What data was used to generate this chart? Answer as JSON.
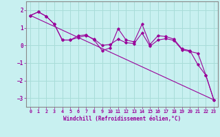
{
  "xlabel": "Windchill (Refroidissement éolien,°C)",
  "bg_color": "#c8f0f0",
  "grid_color": "#a8dcd8",
  "line_color": "#990099",
  "spine_color": "#888888",
  "xlim": [
    -0.5,
    23.5
  ],
  "ylim": [
    -3.5,
    2.5
  ],
  "xticks": [
    0,
    1,
    2,
    3,
    4,
    5,
    6,
    7,
    8,
    9,
    10,
    11,
    12,
    13,
    14,
    15,
    16,
    17,
    18,
    19,
    20,
    21,
    22,
    23
  ],
  "yticks": [
    -3,
    -2,
    -1,
    0,
    1,
    2
  ],
  "series1_x": [
    0,
    1,
    2,
    3,
    4,
    5,
    6,
    7,
    8,
    9,
    10,
    11,
    12,
    13,
    14,
    15,
    16,
    17,
    18,
    19,
    20,
    21,
    22,
    23
  ],
  "series1_y": [
    1.7,
    1.9,
    1.65,
    1.2,
    0.3,
    0.3,
    0.55,
    0.6,
    0.3,
    -0.3,
    -0.15,
    0.95,
    0.3,
    0.2,
    1.2,
    0.05,
    0.55,
    0.5,
    0.35,
    -0.2,
    -0.3,
    -1.1,
    -1.7,
    -3.1
  ],
  "series2_x": [
    0,
    1,
    2,
    3,
    4,
    5,
    6,
    7,
    8,
    9,
    10,
    11,
    12,
    13,
    14,
    15,
    16,
    17,
    18,
    19,
    20,
    21,
    22,
    23
  ],
  "series2_y": [
    1.7,
    1.9,
    1.65,
    1.2,
    0.3,
    0.3,
    0.45,
    0.55,
    0.35,
    0.0,
    0.05,
    0.35,
    0.15,
    0.1,
    0.7,
    -0.05,
    0.3,
    0.38,
    0.28,
    -0.25,
    -0.35,
    -0.45,
    -1.7,
    -3.1
  ],
  "trend_x": [
    0,
    23
  ],
  "trend_y": [
    1.7,
    -3.1
  ]
}
